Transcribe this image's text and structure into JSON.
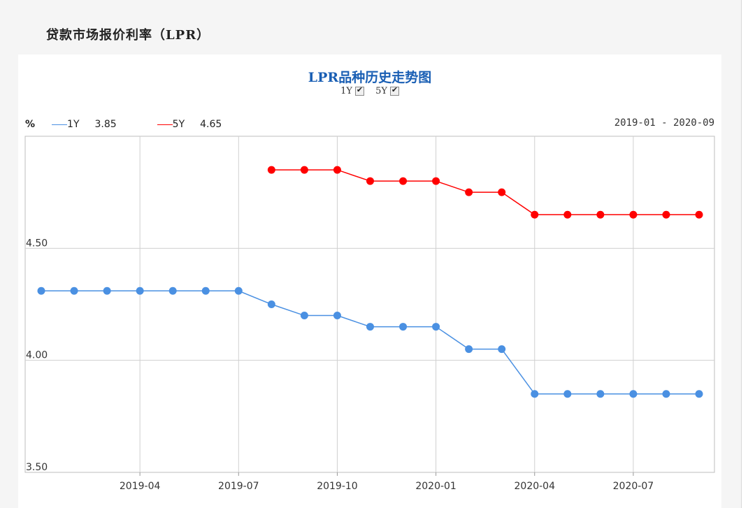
{
  "page": {
    "section_title": "贷款市场报价利率（LPR）"
  },
  "toggles": [
    {
      "label": "1Y",
      "checked": true
    },
    {
      "label": "5Y",
      "checked": true
    }
  ],
  "legend": {
    "unit": "%",
    "items": [
      {
        "name": "1Y",
        "value": "3.85",
        "color": "#4a90e2"
      },
      {
        "name": "5Y",
        "value": "4.65",
        "color": "#ff0000"
      }
    ]
  },
  "date_range": "2019-01 - 2020-09",
  "chart_data": {
    "type": "line",
    "title": "LPR品种历史走势图",
    "x": [
      "2019-01",
      "2019-02",
      "2019-03",
      "2019-04",
      "2019-05",
      "2019-06",
      "2019-07",
      "2019-08",
      "2019-09",
      "2019-10",
      "2019-11",
      "2019-12",
      "2020-01",
      "2020-02",
      "2020-03",
      "2020-04",
      "2020-05",
      "2020-06",
      "2020-07",
      "2020-08",
      "2020-09"
    ],
    "x_ticks": [
      "2019-04",
      "2019-07",
      "2019-10",
      "2020-01",
      "2020-04",
      "2020-07"
    ],
    "y_ticks": [
      "3.50",
      "4.00",
      "4.50"
    ],
    "ylim": [
      3.5,
      5.0
    ],
    "grid": true,
    "series": [
      {
        "name": "1Y",
        "color": "#4a90e2",
        "values": [
          4.31,
          4.31,
          4.31,
          4.31,
          4.31,
          4.31,
          4.31,
          4.25,
          4.2,
          4.2,
          4.15,
          4.15,
          4.15,
          4.05,
          4.05,
          3.85,
          3.85,
          3.85,
          3.85,
          3.85,
          3.85
        ]
      },
      {
        "name": "5Y",
        "color": "#ff0000",
        "values": [
          null,
          null,
          null,
          null,
          null,
          null,
          null,
          4.85,
          4.85,
          4.85,
          4.8,
          4.8,
          4.8,
          4.75,
          4.75,
          4.65,
          4.65,
          4.65,
          4.65,
          4.65,
          4.65
        ]
      }
    ]
  }
}
